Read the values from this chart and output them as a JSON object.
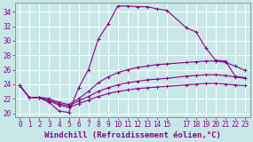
{
  "xlabel": "Windchill (Refroidissement éolien,°C)",
  "bg_color": "#c8e8e8",
  "grid_color": "#aacccc",
  "line_color": "#880088",
  "xlim": [
    -0.5,
    23.5
  ],
  "ylim": [
    19.5,
    35.2
  ],
  "yticks": [
    20,
    22,
    24,
    26,
    28,
    30,
    32,
    34
  ],
  "xticks": [
    0,
    1,
    2,
    3,
    4,
    5,
    6,
    7,
    8,
    9,
    10,
    11,
    12,
    13,
    14,
    15,
    17,
    18,
    19,
    20,
    21,
    22,
    23
  ],
  "xtick_labels": [
    "0",
    "1",
    "2",
    "3",
    "4",
    "5",
    "6",
    "7",
    "8",
    "9",
    "10",
    "11",
    "12",
    "13",
    "14",
    "15",
    "17",
    "18",
    "19",
    "20",
    "21",
    "22",
    "23"
  ],
  "lines": [
    {
      "x": [
        0,
        1,
        2,
        3,
        4,
        5,
        6,
        7,
        8,
        9,
        10,
        11,
        12,
        13,
        14,
        15,
        17,
        18,
        19,
        20,
        21,
        22,
        23
      ],
      "y": [
        23.8,
        22.1,
        22.1,
        21.5,
        20.3,
        20.1,
        23.5,
        26.0,
        30.2,
        32.3,
        34.8,
        34.8,
        34.7,
        34.7,
        34.4,
        34.2,
        31.8,
        31.2,
        29.0,
        27.3,
        27.2,
        25.1,
        24.9
      ]
    },
    {
      "x": [
        0,
        1,
        2,
        3,
        4,
        5,
        6,
        7,
        8,
        9,
        10,
        11,
        12,
        13,
        14,
        15,
        17,
        18,
        19,
        20,
        21,
        22,
        23
      ],
      "y": [
        23.8,
        22.1,
        22.2,
        22.0,
        21.5,
        21.2,
        22.0,
        23.0,
        24.2,
        25.0,
        25.6,
        26.0,
        26.3,
        26.5,
        26.7,
        26.8,
        27.0,
        27.1,
        27.2,
        27.2,
        27.0,
        26.5,
        25.9
      ]
    },
    {
      "x": [
        0,
        1,
        2,
        3,
        4,
        5,
        6,
        7,
        8,
        9,
        10,
        11,
        12,
        13,
        14,
        15,
        17,
        18,
        19,
        20,
        21,
        22,
        23
      ],
      "y": [
        23.8,
        22.1,
        22.1,
        21.8,
        21.3,
        21.0,
        21.7,
        22.3,
        23.0,
        23.5,
        23.9,
        24.2,
        24.4,
        24.6,
        24.7,
        24.8,
        25.1,
        25.2,
        25.3,
        25.3,
        25.2,
        25.0,
        24.8
      ]
    },
    {
      "x": [
        0,
        1,
        2,
        3,
        4,
        5,
        6,
        7,
        8,
        9,
        10,
        11,
        12,
        13,
        14,
        15,
        17,
        18,
        19,
        20,
        21,
        22,
        23
      ],
      "y": [
        23.8,
        22.1,
        22.1,
        21.7,
        21.1,
        20.8,
        21.3,
        21.8,
        22.3,
        22.7,
        23.0,
        23.2,
        23.4,
        23.5,
        23.6,
        23.7,
        23.9,
        24.0,
        24.1,
        24.1,
        24.0,
        23.9,
        23.8
      ]
    }
  ],
  "marker": "+",
  "marker_size": 3,
  "line_width": 0.8,
  "font_size": 6.5,
  "tick_font_size": 5.5
}
